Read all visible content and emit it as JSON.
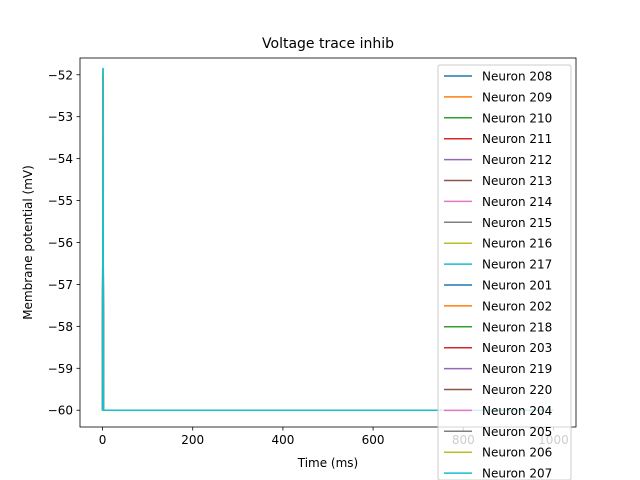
{
  "chart_data": {
    "type": "line",
    "title": "Voltage trace inhib",
    "xlabel": "Time (ms)",
    "ylabel": "Membrane potential (mV)",
    "xlim": [
      -50,
      1050
    ],
    "ylim": [
      -60.4,
      -51.6
    ],
    "x_ticks": [
      0,
      200,
      400,
      600,
      800,
      1000
    ],
    "x_tick_labels": [
      "0",
      "200",
      "400",
      "600",
      "800",
      "1000"
    ],
    "y_ticks": [
      -60,
      -59,
      -58,
      -57,
      -56,
      -55,
      -54,
      -53,
      -52
    ],
    "y_tick_labels": [
      "−60",
      "−59",
      "−58",
      "−57",
      "−56",
      "−55",
      "−54",
      "−53",
      "−52"
    ],
    "grid": false,
    "legend_position": "right",
    "series": [
      {
        "name": "Neuron 208",
        "color": "#1f77b4",
        "x": [
          0,
          1,
          2,
          1000
        ],
        "y": [
          -60,
          -53.8,
          -60,
          -60
        ]
      },
      {
        "name": "Neuron 209",
        "color": "#ff7f0e",
        "x": [
          0,
          1,
          2,
          1000
        ],
        "y": [
          -60,
          -53.4,
          -60,
          -60
        ]
      },
      {
        "name": "Neuron 210",
        "color": "#2ca02c",
        "x": [
          0,
          1,
          2,
          1000
        ],
        "y": [
          -60,
          -53.0,
          -60,
          -60
        ]
      },
      {
        "name": "Neuron 211",
        "color": "#d62728",
        "x": [
          0,
          1,
          2,
          1000
        ],
        "y": [
          -60,
          -52.6,
          -60,
          -60
        ]
      },
      {
        "name": "Neuron 212",
        "color": "#9467bd",
        "x": [
          0,
          1,
          2,
          1000
        ],
        "y": [
          -60,
          -52.3,
          -60,
          -60
        ]
      },
      {
        "name": "Neuron 213",
        "color": "#8c564b",
        "x": [
          0,
          1,
          2,
          1000
        ],
        "y": [
          -60,
          -52.2,
          -60,
          -60
        ]
      },
      {
        "name": "Neuron 214",
        "color": "#e377c2",
        "x": [
          0,
          1,
          2,
          1000
        ],
        "y": [
          -60,
          -52.1,
          -60,
          -60
        ]
      },
      {
        "name": "Neuron 215",
        "color": "#7f7f7f",
        "x": [
          0,
          1,
          2,
          1000
        ],
        "y": [
          -60,
          -52.0,
          -60,
          -60
        ]
      },
      {
        "name": "Neuron 216",
        "color": "#bcbd22",
        "x": [
          0,
          1,
          2,
          1000
        ],
        "y": [
          -60,
          -51.9,
          -60,
          -60
        ]
      },
      {
        "name": "Neuron 217",
        "color": "#17becf",
        "x": [
          0,
          1,
          2,
          1000
        ],
        "y": [
          -60,
          -51.85,
          -60,
          -60
        ]
      },
      {
        "name": "Neuron 201",
        "color": "#1f77b4",
        "x": [
          0,
          1,
          2,
          1000
        ],
        "y": [
          -60,
          -53.7,
          -60,
          -60
        ]
      },
      {
        "name": "Neuron 202",
        "color": "#ff7f0e",
        "x": [
          0,
          1,
          2,
          1000
        ],
        "y": [
          -60,
          -53.2,
          -60,
          -60
        ]
      },
      {
        "name": "Neuron 218",
        "color": "#2ca02c",
        "x": [
          0,
          1,
          2,
          1000
        ],
        "y": [
          -60,
          -52.8,
          -60,
          -60
        ]
      },
      {
        "name": "Neuron 203",
        "color": "#d62728",
        "x": [
          0,
          1,
          2,
          1000
        ],
        "y": [
          -60,
          -52.5,
          -60,
          -60
        ]
      },
      {
        "name": "Neuron 219",
        "color": "#9467bd",
        "x": [
          0,
          1,
          2,
          1000
        ],
        "y": [
          -60,
          -52.4,
          -60,
          -60
        ]
      },
      {
        "name": "Neuron 220",
        "color": "#8c564b",
        "x": [
          0,
          1,
          2,
          1000
        ],
        "y": [
          -60,
          -52.25,
          -60,
          -60
        ]
      },
      {
        "name": "Neuron 204",
        "color": "#e377c2",
        "x": [
          0,
          1,
          2,
          1000
        ],
        "y": [
          -60,
          -52.15,
          -60,
          -60
        ]
      },
      {
        "name": "Neuron 205",
        "color": "#7f7f7f",
        "x": [
          0,
          1,
          2,
          1000
        ],
        "y": [
          -60,
          -52.05,
          -60,
          -60
        ]
      },
      {
        "name": "Neuron 206",
        "color": "#bcbd22",
        "x": [
          0,
          1,
          2,
          1000
        ],
        "y": [
          -60,
          -51.95,
          -60,
          -60
        ]
      },
      {
        "name": "Neuron 207",
        "color": "#17becf",
        "x": [
          0,
          1,
          2,
          1000
        ],
        "y": [
          -60,
          -51.85,
          -60,
          -60
        ]
      }
    ]
  }
}
